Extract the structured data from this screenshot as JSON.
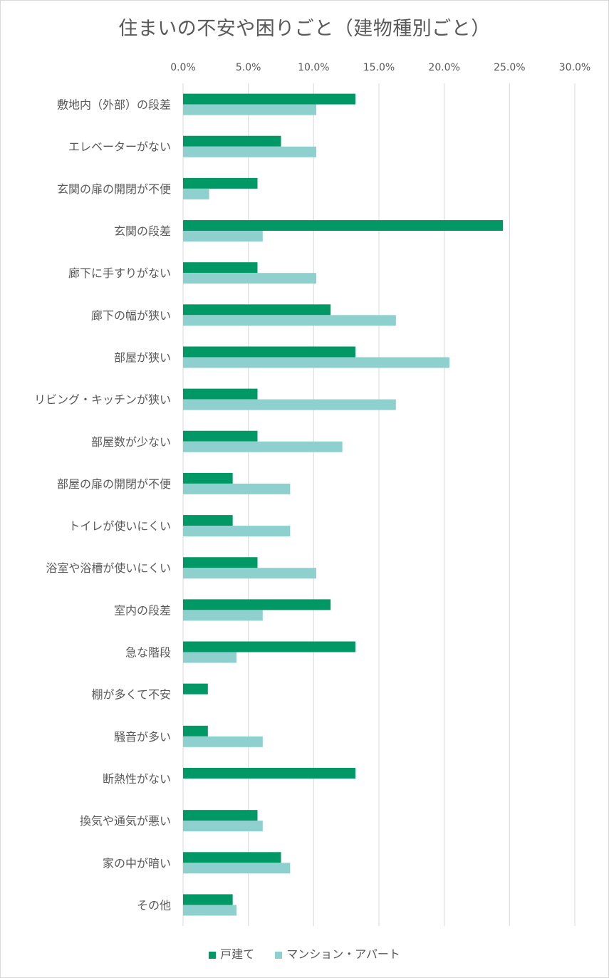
{
  "chart_data": {
    "type": "bar",
    "orientation": "horizontal",
    "title": "住まいの不安や困りごと（建物種別ごと）",
    "xlim": [
      0,
      0.3
    ],
    "ticks": [
      0,
      0.05,
      0.1,
      0.15,
      0.2,
      0.25,
      0.3
    ],
    "tick_labels": [
      "0.0%",
      "5.0%",
      "10.0%",
      "15.0%",
      "20.0%",
      "25.0%",
      "30.0%"
    ],
    "axis_position": "top",
    "grid": true,
    "legend_position": "bottom",
    "categories": [
      "敷地内（外部）の段差",
      "エレベーターがない",
      "玄関の扉の開閉が不便",
      "玄関の段差",
      "廊下に手すりがない",
      "廊下の幅が狭い",
      "部屋が狭い",
      "リビング・キッチンが狭い",
      "部屋数が少ない",
      "部屋の扉の開閉が不便",
      "トイレが使いにくい",
      "浴室や浴槽が使いにくい",
      "室内の段差",
      "急な階段",
      "棚が多くて不安",
      "騒音が多い",
      "断熱性がない",
      "換気や通気が悪い",
      "家の中が暗い",
      "その他"
    ],
    "series": [
      {
        "name": "戸建て",
        "color": "#009966",
        "values": [
          0.132,
          0.075,
          0.057,
          0.245,
          0.057,
          0.113,
          0.132,
          0.057,
          0.057,
          0.038,
          0.038,
          0.057,
          0.113,
          0.132,
          0.019,
          0.019,
          0.132,
          0.057,
          0.075,
          0.038
        ]
      },
      {
        "name": "マンション・アパート",
        "color": "#8ed0ce",
        "values": [
          0.102,
          0.102,
          0.02,
          0.061,
          0.102,
          0.163,
          0.204,
          0.163,
          0.122,
          0.082,
          0.082,
          0.102,
          0.061,
          0.041,
          0,
          0.061,
          0,
          0.061,
          0.082,
          0.041
        ]
      }
    ]
  }
}
